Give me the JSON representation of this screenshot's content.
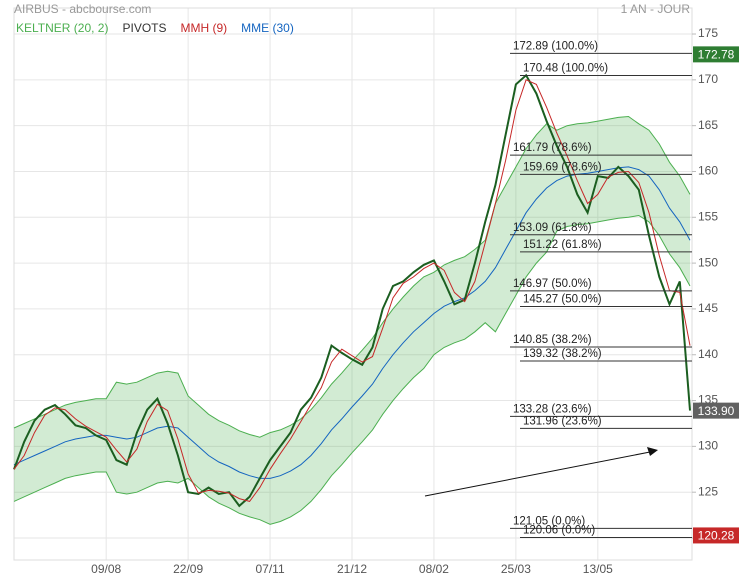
{
  "chart_data": {
    "type": "line",
    "title": "AIRBUS - abcbourse.com",
    "period": "1 AN - JOUR",
    "categories": [
      null,
      null,
      null,
      null,
      null,
      null,
      null,
      null,
      null,
      "09/08",
      null,
      null,
      null,
      null,
      null,
      null,
      null,
      "22/09",
      null,
      null,
      null,
      null,
      null,
      null,
      null,
      "07/11",
      null,
      null,
      null,
      null,
      null,
      null,
      null,
      "21/12",
      null,
      null,
      null,
      null,
      null,
      null,
      null,
      "08/02",
      null,
      null,
      null,
      null,
      null,
      null,
      null,
      "25/03",
      null,
      null,
      null,
      null,
      null,
      null,
      null,
      "13/05",
      null,
      null,
      null,
      null,
      null,
      null,
      null,
      null,
      null
    ],
    "close": {
      "color": "#1b5e20",
      "values": [
        127.5,
        130.5,
        132.8,
        134.0,
        134.5,
        133.5,
        132.3,
        132.0,
        131.2,
        130.7,
        128.5,
        128.0,
        131.5,
        134.0,
        135.2,
        132.5,
        129.0,
        125.0,
        124.8,
        125.5,
        124.8,
        125.0,
        123.5,
        124.5,
        126.5,
        128.5,
        130.0,
        131.5,
        134.0,
        135.3,
        137.5,
        141.0,
        140.2,
        139.5,
        138.9,
        140.8,
        145.0,
        147.5,
        148.0,
        149.0,
        149.8,
        150.3,
        148.0,
        145.5,
        146.0,
        150.0,
        154.5,
        158.5,
        164.0,
        169.5,
        170.5,
        168.5,
        165.5,
        162.8,
        160.5,
        157.5,
        155.5,
        159.5,
        159.3,
        160.5,
        159.5,
        158.0,
        153.0,
        148.5,
        145.5,
        148.0,
        133.9
      ]
    },
    "series": [
      {
        "name": "KELTNER (20, 2)",
        "color": "#4caf50",
        "upper": [
          132.0,
          132.5,
          133.0,
          133.5,
          134.0,
          134.5,
          134.8,
          135.0,
          135.2,
          135.2,
          137.0,
          136.8,
          137.0,
          137.5,
          138.0,
          138.2,
          138.0,
          135.5,
          134.5,
          133.5,
          132.8,
          132.3,
          131.7,
          131.3,
          131.0,
          131.5,
          131.8,
          132.3,
          133.0,
          134.0,
          135.3,
          136.8,
          138.0,
          139.3,
          140.5,
          141.8,
          143.5,
          145.0,
          146.3,
          147.5,
          148.5,
          149.0,
          149.8,
          150.3,
          150.7,
          151.5,
          152.5,
          156.5,
          158.5,
          160.5,
          162.5,
          164.0,
          165.2,
          164.5,
          165.0,
          165.2,
          165.3,
          165.5,
          165.7,
          165.9,
          166.0,
          165.2,
          164.5,
          163.0,
          161.0,
          159.5,
          157.5
        ],
        "lower": [
          124.0,
          124.5,
          125.0,
          125.5,
          126.0,
          126.5,
          126.8,
          127.0,
          127.2,
          127.2,
          125.0,
          124.8,
          125.0,
          125.5,
          126.0,
          126.2,
          126.0,
          126.5,
          125.5,
          124.5,
          123.8,
          123.3,
          122.7,
          122.3,
          122.0,
          121.5,
          121.8,
          122.3,
          123.0,
          124.0,
          125.3,
          126.8,
          128.0,
          129.3,
          130.5,
          131.8,
          133.5,
          135.0,
          136.3,
          137.5,
          138.5,
          140.0,
          140.8,
          141.3,
          141.7,
          142.5,
          143.5,
          142.5,
          144.5,
          146.5,
          148.5,
          150.0,
          151.2,
          153.5,
          154.0,
          154.2,
          154.3,
          154.5,
          154.7,
          154.9,
          155.0,
          155.2,
          154.5,
          153.0,
          151.0,
          149.5,
          147.5
        ]
      },
      {
        "name": "PIVOTS",
        "color": "#333333",
        "levels": [
          {
            "value": 172.89,
            "label": "172.89  (100.0%)"
          },
          {
            "value": 170.48,
            "label": "170.48  (100.0%)"
          },
          {
            "value": 161.79,
            "label": "161.79  (78.6%)"
          },
          {
            "value": 159.69,
            "label": "159.69  (78.6%)"
          },
          {
            "value": 153.09,
            "label": "153.09  (61.8%)"
          },
          {
            "value": 151.22,
            "label": "151.22  (61.8%)"
          },
          {
            "value": 146.97,
            "label": "146.97  (50.0%)"
          },
          {
            "value": 145.27,
            "label": "145.27  (50.0%)"
          },
          {
            "value": 140.85,
            "label": "140.85  (38.2%)"
          },
          {
            "value": 139.32,
            "label": "139.32  (38.2%)"
          },
          {
            "value": 133.28,
            "label": "133.28  (23.6%)"
          },
          {
            "value": 131.96,
            "label": "131.96  (23.6%)"
          },
          {
            "value": 121.05,
            "label": "121.05  (0.0%)"
          },
          {
            "value": 120.06,
            "label": "120.06  (0.0%)"
          }
        ]
      },
      {
        "name": "MMH (9)",
        "color": "#c62828",
        "values": [
          127.5,
          129.0,
          131.5,
          133.4,
          134.2,
          134.0,
          133.0,
          132.2,
          131.6,
          131.0,
          129.6,
          128.3,
          129.7,
          132.7,
          134.6,
          133.9,
          130.8,
          127.0,
          124.9,
          125.2,
          125.1,
          124.9,
          124.3,
          124.0,
          125.5,
          127.5,
          129.2,
          130.8,
          132.7,
          134.6,
          136.4,
          139.2,
          140.6,
          139.9,
          139.2,
          139.8,
          142.9,
          146.2,
          147.8,
          148.5,
          149.4,
          150.0,
          149.2,
          146.8,
          145.8,
          148.0,
          152.2,
          156.5,
          161.2,
          166.7,
          170.0,
          169.5,
          167.0,
          164.2,
          161.7,
          159.0,
          156.5,
          157.5,
          159.4,
          159.9,
          160.0,
          158.8,
          155.5,
          150.8,
          147.0,
          146.8,
          141.0
        ]
      },
      {
        "name": "MME (30)",
        "color": "#1565c0",
        "values": [
          128.0,
          128.5,
          129.0,
          129.5,
          130.0,
          130.5,
          130.8,
          131.0,
          131.2,
          131.2,
          131.0,
          130.8,
          131.0,
          131.5,
          132.0,
          132.2,
          132.0,
          131.0,
          130.0,
          129.0,
          128.3,
          127.8,
          127.2,
          126.8,
          126.5,
          126.5,
          126.8,
          127.3,
          128.0,
          129.0,
          130.3,
          131.8,
          133.0,
          134.3,
          135.5,
          136.8,
          138.5,
          140.0,
          141.3,
          142.5,
          143.5,
          144.5,
          145.3,
          145.8,
          146.2,
          147.0,
          148.0,
          149.5,
          151.5,
          153.5,
          155.5,
          157.0,
          158.2,
          159.0,
          159.5,
          159.7,
          159.8,
          160.0,
          160.2,
          160.4,
          160.5,
          160.2,
          159.5,
          158.0,
          156.0,
          154.5,
          152.5
        ]
      }
    ],
    "markers": [
      {
        "value": 172.78,
        "color": "#2e7d32"
      },
      {
        "value": 133.9,
        "label": "133.90",
        "color": "#616161"
      },
      {
        "value": 120.28,
        "color": "#c62828"
      }
    ],
    "ylim": [
      117.6,
      177.84
    ],
    "yticks": [
      120,
      125,
      130,
      135,
      140,
      145,
      150,
      155,
      160,
      165,
      170,
      175
    ],
    "grid": true
  }
}
